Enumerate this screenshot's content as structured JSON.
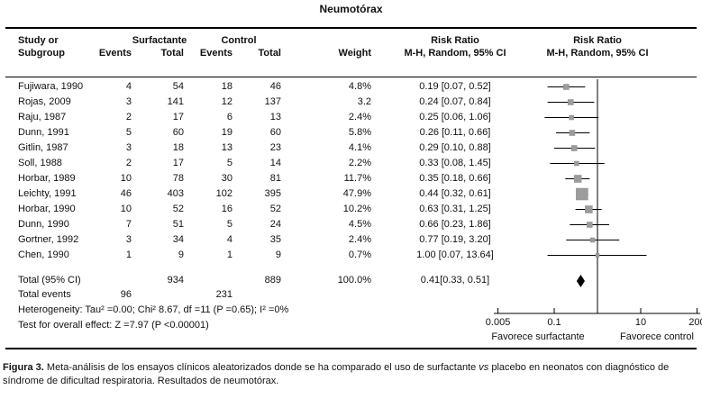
{
  "title": "Neumotórax",
  "table": {
    "headers": {
      "study_line1": "Study or",
      "study_line2": "Subgroup",
      "group1": "Surfactante",
      "group2": "Control",
      "events": "Events",
      "total": "Total",
      "weight": "Weight",
      "risk_ratio": "Risk Ratio",
      "mh_ci": "M-H, Random, 95% CI"
    },
    "rows": [
      {
        "study": "Fujiwara, 1990",
        "s_events": "4",
        "s_total": "54",
        "c_events": "18",
        "c_total": "46",
        "weight": "4.8%",
        "ci": "0.19 [0.07, 0.52]"
      },
      {
        "study": "Rojas, 2009",
        "s_events": "3",
        "s_total": "141",
        "c_events": "12",
        "c_total": "137",
        "weight": "3.2",
        "ci": "0.24 [0.07, 0.84]"
      },
      {
        "study": "Raju, 1987",
        "s_events": "2",
        "s_total": "17",
        "c_events": "6",
        "c_total": "13",
        "weight": "2.4%",
        "ci": "0.25 [0.06, 1.06]"
      },
      {
        "study": "Dunn, 1991",
        "s_events": "5",
        "s_total": "60",
        "c_events": "19",
        "c_total": "60",
        "weight": "5.8%",
        "ci": "0.26 [0.11, 0.66]"
      },
      {
        "study": "Gitlin, 1987",
        "s_events": "3",
        "s_total": "18",
        "c_events": "13",
        "c_total": "23",
        "weight": "4.1%",
        "ci": "0.29 [0.10, 0.88]"
      },
      {
        "study": "Soll, 1988",
        "s_events": "2",
        "s_total": "17",
        "c_events": "5",
        "c_total": "14",
        "weight": "2.2%",
        "ci": "0.33 [0.08, 1.45]"
      },
      {
        "study": "Horbar, 1989",
        "s_events": "10",
        "s_total": "78",
        "c_events": "30",
        "c_total": "81",
        "weight": "11.7%",
        "ci": "0.35 [0.18, 0.66]"
      },
      {
        "study": "Leichty, 1991",
        "s_events": "46",
        "s_total": "403",
        "c_events": "102",
        "c_total": "395",
        "weight": "47.9%",
        "ci": "0.44 [0.32, 0.61]"
      },
      {
        "study": "Horbar, 1990",
        "s_events": "10",
        "s_total": "52",
        "c_events": "16",
        "c_total": "52",
        "weight": "10.2%",
        "ci": "0.63 [0.31, 1.25]"
      },
      {
        "study": "Dunn, 1990",
        "s_events": "7",
        "s_total": "51",
        "c_events": "5",
        "c_total": "24",
        "weight": "4.5%",
        "ci": "0.66 [0.23, 1.86]"
      },
      {
        "study": "Gortner, 1992",
        "s_events": "3",
        "s_total": "34",
        "c_events": "4",
        "c_total": "35",
        "weight": "2.4%",
        "ci": "0.77 [0.19, 3.20]"
      },
      {
        "study": "Chen, 1990",
        "s_events": "1",
        "s_total": "9",
        "c_events": "1",
        "c_total": "9",
        "weight": "0.7%",
        "ci": "1.00 [0.07, 13.64]"
      }
    ],
    "totals": {
      "label": "Total (95% CI)",
      "s_total": "934",
      "c_total": "889",
      "weight": "100.0%",
      "ci": "0.41[0.33, 0.51]",
      "events_label": "Total events",
      "s_events": "96",
      "c_events": "231",
      "heterogeneity": "Heterogeneity: Tau² =0.00; Chi² 8.67, df =11 (P =0.65); I² =0%",
      "overall_effect": "Test for overall effect: Z =7.97 (P <0.00001)"
    }
  },
  "axis": {
    "tick_labels": [
      "0.005",
      "0.1",
      "10",
      "200"
    ],
    "favors_left": "Favorece surfactante",
    "favors_right": "Favorece control"
  },
  "caption": {
    "label": "Figura 3.",
    "before_vs": " Meta-análisis de los ensayos clínicos aleatorizados donde se ha comparado el uso de surfactante ",
    "vs": "vs",
    "after_vs": " placebo en neonatos con diagnóstico de síndrome de dificultad respiratoria. Resultados de neumotórax."
  },
  "colors": {
    "square_fill": "#9c9c9c",
    "square_stroke": "#8a8a8a",
    "diamond_fill": "#000000",
    "line": "#000000",
    "text": "#111111"
  },
  "chart_data": {
    "type": "scatter",
    "subtype": "forest-plot-meta-analysis",
    "title": "Neumotórax",
    "effect_measure": "Risk Ratio, M-H, Random, 95% CI",
    "x_scale": "log",
    "xlim": [
      0.005,
      200
    ],
    "x_ticks": [
      0.005,
      0.1,
      1,
      10,
      200
    ],
    "null_line": 1,
    "favors_left": "Favorece surfactante",
    "favors_right": "Favorece control",
    "studies": [
      {
        "name": "Fujiwara, 1990",
        "rr": 0.19,
        "ci_low": 0.07,
        "ci_high": 0.52,
        "weight_pct": 4.8
      },
      {
        "name": "Rojas, 2009",
        "rr": 0.24,
        "ci_low": 0.07,
        "ci_high": 0.84,
        "weight_pct": 3.2
      },
      {
        "name": "Raju, 1987",
        "rr": 0.25,
        "ci_low": 0.06,
        "ci_high": 1.06,
        "weight_pct": 2.4
      },
      {
        "name": "Dunn, 1991",
        "rr": 0.26,
        "ci_low": 0.11,
        "ci_high": 0.66,
        "weight_pct": 5.8
      },
      {
        "name": "Gitlin, 1987",
        "rr": 0.29,
        "ci_low": 0.1,
        "ci_high": 0.88,
        "weight_pct": 4.1
      },
      {
        "name": "Soll, 1988",
        "rr": 0.33,
        "ci_low": 0.08,
        "ci_high": 1.45,
        "weight_pct": 2.2
      },
      {
        "name": "Horbar, 1989",
        "rr": 0.35,
        "ci_low": 0.18,
        "ci_high": 0.66,
        "weight_pct": 11.7
      },
      {
        "name": "Leichty, 1991",
        "rr": 0.44,
        "ci_low": 0.32,
        "ci_high": 0.61,
        "weight_pct": 47.9
      },
      {
        "name": "Horbar, 1990",
        "rr": 0.63,
        "ci_low": 0.31,
        "ci_high": 1.25,
        "weight_pct": 10.2
      },
      {
        "name": "Dunn, 1990",
        "rr": 0.66,
        "ci_low": 0.23,
        "ci_high": 1.86,
        "weight_pct": 4.5
      },
      {
        "name": "Gortner, 1992",
        "rr": 0.77,
        "ci_low": 0.19,
        "ci_high": 3.2,
        "weight_pct": 2.4
      },
      {
        "name": "Chen, 1990",
        "rr": 1.0,
        "ci_low": 0.07,
        "ci_high": 13.64,
        "weight_pct": 0.7
      }
    ],
    "total": {
      "name": "Total (95% CI)",
      "rr": 0.41,
      "ci_low": 0.33,
      "ci_high": 0.51,
      "weight_pct": 100.0
    }
  }
}
